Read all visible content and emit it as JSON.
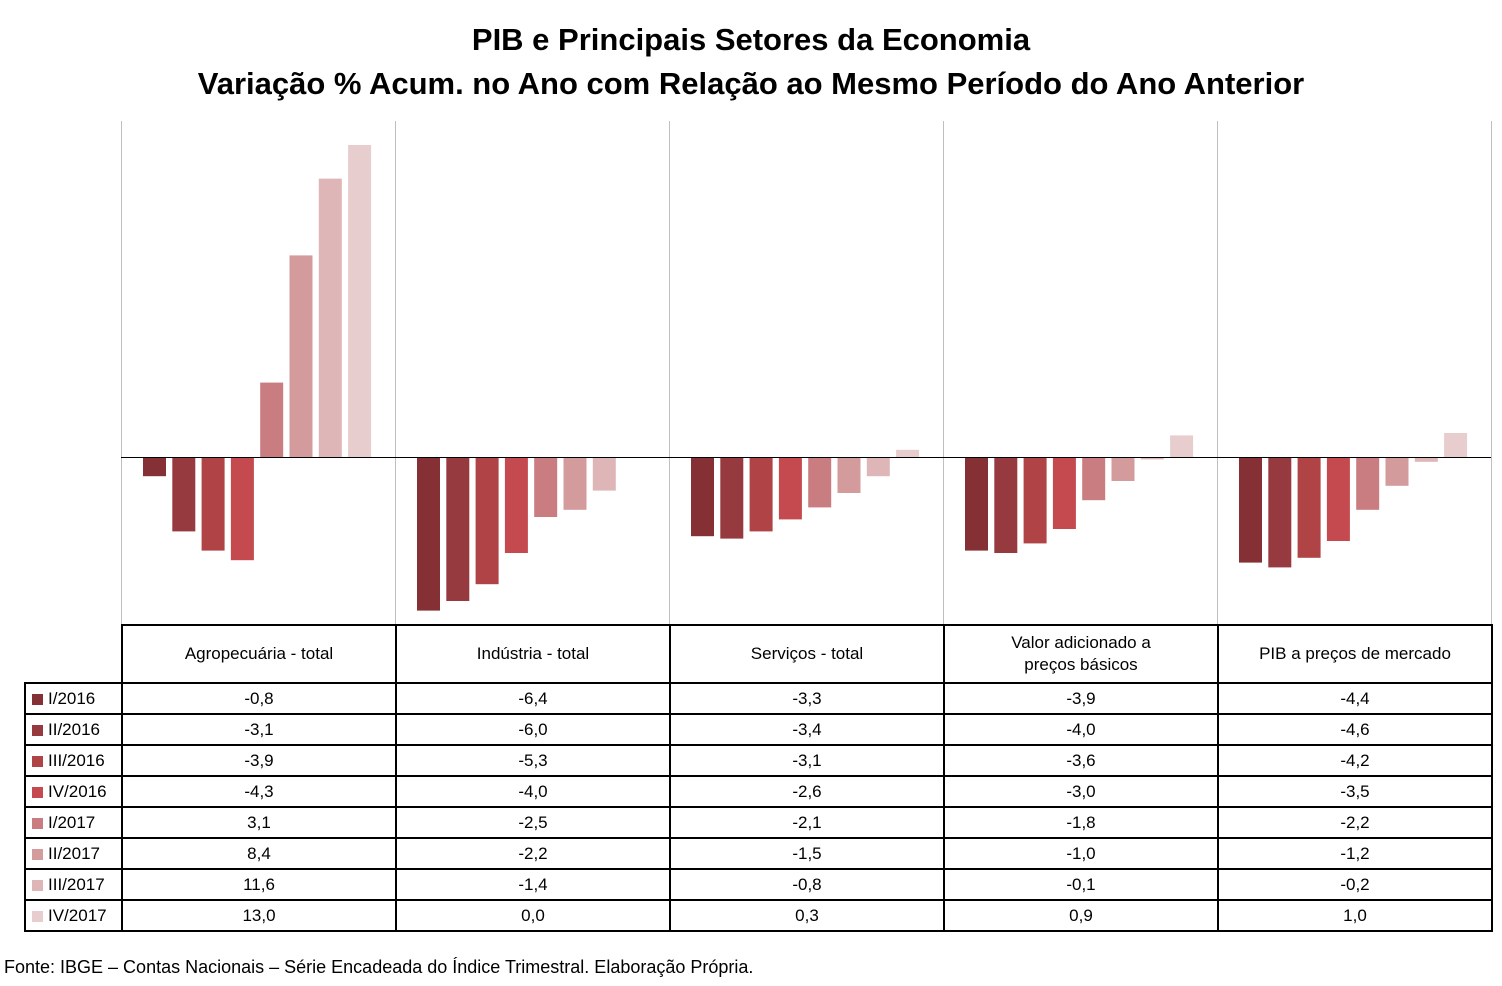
{
  "chart_data": {
    "type": "bar",
    "title": "PIB e Principais Setores da Economia",
    "subtitle": "Variação % Acum. no Ano com Relação ao Mesmo Período do Ano Anterior",
    "categories": [
      "Agropecuária - total",
      "Indústria - total",
      "Serviços - total",
      "Valor adicionado a preços básicos",
      "PIB a preços de mercado"
    ],
    "series": [
      {
        "name": "I/2016",
        "color": "#843035",
        "values": [
          -0.8,
          -6.4,
          -3.3,
          -3.9,
          -4.4
        ],
        "labels": [
          "-0,8",
          "-6,4",
          "-3,3",
          "-3,9",
          "-4,4"
        ]
      },
      {
        "name": "II/2016",
        "color": "#963a3f",
        "values": [
          -3.1,
          -6.0,
          -3.4,
          -4.0,
          -4.6
        ],
        "labels": [
          "-3,1",
          "-6,0",
          "-3,4",
          "-4,0",
          "-4,6"
        ]
      },
      {
        "name": "III/2016",
        "color": "#b04346",
        "values": [
          -3.9,
          -5.3,
          -3.1,
          -3.6,
          -4.2
        ],
        "labels": [
          "-3,9",
          "-5,3",
          "-3,1",
          "-3,6",
          "-4,2"
        ]
      },
      {
        "name": "IV/2016",
        "color": "#c44a4f",
        "values": [
          -4.3,
          -4.0,
          -2.6,
          -3.0,
          -3.5
        ],
        "labels": [
          "-4,3",
          "-4,0",
          "-2,6",
          "-3,0",
          "-3,5"
        ]
      },
      {
        "name": "I/2017",
        "color": "#c97d80",
        "values": [
          3.1,
          -2.5,
          -2.1,
          -1.8,
          -2.2
        ],
        "labels": [
          "3,1",
          "-2,5",
          "-2,1",
          "-1,8",
          "-2,2"
        ]
      },
      {
        "name": "II/2017",
        "color": "#d39b9c",
        "values": [
          8.4,
          -2.2,
          -1.5,
          -1.0,
          -1.2
        ],
        "labels": [
          "8,4",
          "-2,2",
          "-1,5",
          "-1,0",
          "-1,2"
        ]
      },
      {
        "name": "III/2017",
        "color": "#deb6b7",
        "values": [
          11.6,
          -1.4,
          -0.8,
          -0.1,
          -0.2
        ],
        "labels": [
          "11,6",
          "-1,4",
          "-0,8",
          "-0,1",
          "-0,2"
        ]
      },
      {
        "name": "IV/2017",
        "color": "#e8cdce",
        "values": [
          13.0,
          0.0,
          0.3,
          0.9,
          1.0
        ],
        "labels": [
          "13,0",
          "0,0",
          "0,3",
          "0,9",
          "1,0"
        ]
      }
    ],
    "ylim": [
      -6.9,
      13.9
    ],
    "legend": "data table below chart",
    "grid": false
  },
  "source": "Fonte: IBGE – Contas Nacionais – Série Encadeada do Índice Trimestral. Elaboração Própria."
}
